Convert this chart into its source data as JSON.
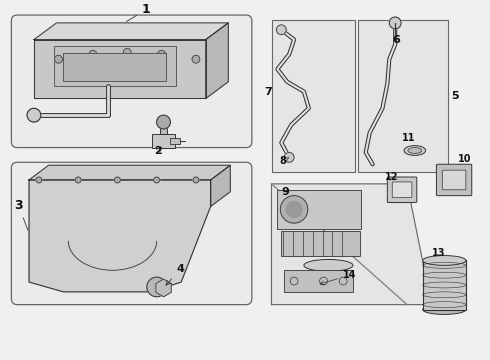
{
  "bg_color": "#f0f0f0",
  "border_color": "#888888",
  "line_color": "#333333",
  "label_color": "#111111",
  "box_fill": "#e8e8e8"
}
